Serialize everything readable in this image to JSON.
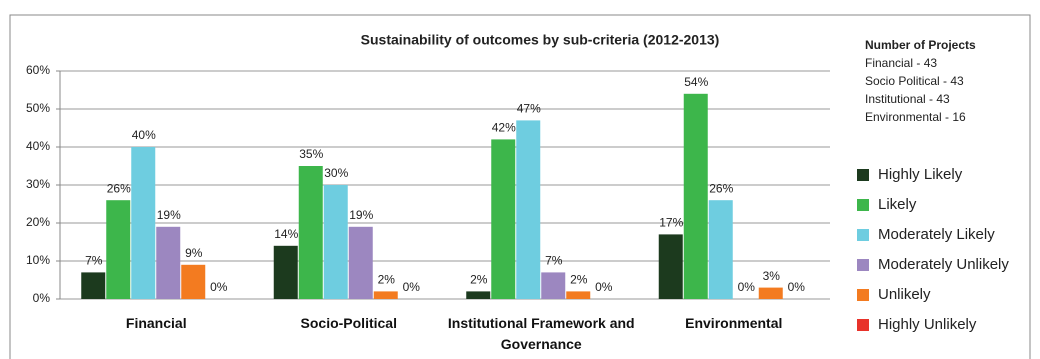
{
  "chart_data": {
    "type": "bar",
    "title": "Sustainability of outcomes by sub-criteria (2012-2013)",
    "categories": [
      "Financial",
      "Socio-Political",
      "Institutional Framework and Governance",
      "Environmental"
    ],
    "series": [
      {
        "name": "Highly Likely",
        "color": "#1c3a1e",
        "values": [
          7,
          14,
          2,
          17
        ],
        "value_labels": [
          "7%",
          "14%",
          "2%",
          "17%"
        ]
      },
      {
        "name": "Likely",
        "color": "#3db64b",
        "values": [
          26,
          35,
          42,
          54
        ],
        "value_labels": [
          "26%",
          "35%",
          "42%",
          "54%"
        ]
      },
      {
        "name": "Moderately Likely",
        "color": "#6ecde0",
        "values": [
          40,
          30,
          47,
          26
        ],
        "value_labels": [
          "40%",
          "30%",
          "47%",
          "26%"
        ]
      },
      {
        "name": "Moderately Unlikely",
        "color": "#9c87c0",
        "values": [
          19,
          19,
          7,
          0
        ],
        "value_labels": [
          "19%",
          "19%",
          "7%",
          "0%"
        ]
      },
      {
        "name": "Unlikely",
        "color": "#f37b20",
        "values": [
          9,
          2,
          2,
          3
        ],
        "value_labels": [
          "9%",
          "2%",
          "2%",
          "3%"
        ]
      },
      {
        "name": "Highly Unlikely",
        "color": "#e8322a",
        "values": [
          0,
          0,
          0,
          0
        ],
        "value_labels": [
          "0%",
          "0%",
          "0%",
          "0%"
        ]
      }
    ],
    "ylim": [
      0,
      60
    ],
    "yticks": [
      {
        "value": 0,
        "label": "0%"
      },
      {
        "value": 10,
        "label": "10%"
      },
      {
        "value": 20,
        "label": "20%"
      },
      {
        "value": 30,
        "label": "30%"
      },
      {
        "value": 40,
        "label": "40%"
      },
      {
        "value": 50,
        "label": "50%"
      },
      {
        "value": 60,
        "label": "60%"
      }
    ],
    "grid": true,
    "legend": "right",
    "annotations": [
      "Number of Projects",
      "Financial  - 43",
      "Socio Political  - 43",
      "Institutional - 43",
      "Environmental  - 16"
    ]
  }
}
